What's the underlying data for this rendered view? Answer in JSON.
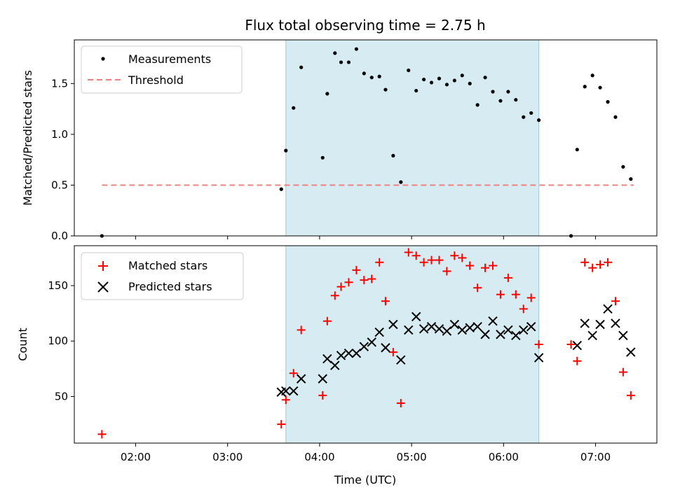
{
  "chart_data": {
    "title": "Flux total observing time = 2.75 h",
    "xlabel": "Time (UTC)",
    "x_ticks": [
      "02:00",
      "03:00",
      "04:00",
      "05:00",
      "06:00",
      "07:00"
    ],
    "x_range": [
      "01:20",
      "07:40"
    ],
    "shaded_interval": [
      "03:38",
      "06:23"
    ],
    "panels": [
      {
        "type": "scatter",
        "ylabel": "Matched/Predicted stars",
        "ylim": [
          0,
          1.93
        ],
        "y_ticks": [
          "0.0",
          "0.5",
          "1.0",
          "1.5"
        ],
        "legend": [
          "Measurements",
          "Threshold"
        ],
        "legend_position": "top-left",
        "threshold": {
          "name": "Threshold",
          "value": 0.5,
          "x": [
            "01:38",
            "07:25"
          ],
          "color": "#f08080"
        },
        "series": [
          {
            "name": "Measurements",
            "color": "#000000",
            "x": [
              "01:38",
              "03:35",
              "03:38",
              "03:43",
              "03:48",
              "04:02",
              "04:05",
              "04:10",
              "04:14",
              "04:19",
              "04:24",
              "04:29",
              "04:34",
              "04:39",
              "04:43",
              "04:48",
              "04:53",
              "04:58",
              "05:03",
              "05:08",
              "05:13",
              "05:18",
              "05:23",
              "05:28",
              "05:33",
              "05:38",
              "05:43",
              "05:48",
              "05:53",
              "05:58",
              "06:03",
              "06:08",
              "06:13",
              "06:18",
              "06:23",
              "06:44",
              "06:48",
              "06:53",
              "06:58",
              "07:03",
              "07:08",
              "07:13",
              "07:18",
              "07:23"
            ],
            "y": [
              0.0,
              0.46,
              0.84,
              1.26,
              1.66,
              0.77,
              1.4,
              1.8,
              1.71,
              1.71,
              1.84,
              1.6,
              1.56,
              1.57,
              1.44,
              0.79,
              0.53,
              1.63,
              1.43,
              1.54,
              1.51,
              1.55,
              1.49,
              1.53,
              1.58,
              1.5,
              1.29,
              1.56,
              1.42,
              1.33,
              1.42,
              1.34,
              1.17,
              1.21,
              1.14,
              0.0,
              0.85,
              1.47,
              1.58,
              1.46,
              1.32,
              1.17,
              0.68,
              0.56
            ]
          }
        ]
      },
      {
        "type": "scatter",
        "ylabel": "Count",
        "ylim": [
          8,
          186
        ],
        "y_ticks": [
          "50",
          "100",
          "150"
        ],
        "legend": [
          "Matched stars",
          "Predicted stars"
        ],
        "legend_position": "top-left",
        "series": [
          {
            "name": "Matched stars",
            "marker": "plus",
            "color": "#ff0000",
            "x": [
              "01:38",
              "03:35",
              "03:38",
              "03:43",
              "03:48",
              "04:02",
              "04:05",
              "04:10",
              "04:14",
              "04:19",
              "04:24",
              "04:29",
              "04:34",
              "04:39",
              "04:43",
              "04:48",
              "04:53",
              "04:58",
              "05:03",
              "05:08",
              "05:13",
              "05:18",
              "05:23",
              "05:28",
              "05:33",
              "05:38",
              "05:43",
              "05:48",
              "05:53",
              "05:58",
              "06:03",
              "06:08",
              "06:13",
              "06:18",
              "06:23",
              "06:44",
              "06:48",
              "06:53",
              "06:58",
              "07:03",
              "07:08",
              "07:13",
              "07:18",
              "07:23"
            ],
            "y": [
              16,
              25,
              47,
              71,
              110,
              51,
              118,
              141,
              149,
              153,
              164,
              155,
              156,
              171,
              136,
              90,
              44,
              180,
              177,
              171,
              173,
              173,
              163,
              177,
              175,
              168,
              148,
              166,
              168,
              142,
              157,
              142,
              129,
              139,
              97,
              97,
              82,
              171,
              166,
              169,
              171,
              136,
              72,
              51
            ]
          },
          {
            "name": "Predicted stars",
            "marker": "x",
            "color": "#000000",
            "x": [
              "03:35",
              "03:38",
              "03:43",
              "03:48",
              "04:02",
              "04:05",
              "04:10",
              "04:14",
              "04:19",
              "04:24",
              "04:29",
              "04:34",
              "04:39",
              "04:43",
              "04:48",
              "04:53",
              "04:58",
              "05:03",
              "05:08",
              "05:13",
              "05:18",
              "05:23",
              "05:28",
              "05:33",
              "05:38",
              "05:43",
              "05:48",
              "05:53",
              "05:58",
              "06:03",
              "06:08",
              "06:13",
              "06:18",
              "06:23",
              "06:48",
              "06:53",
              "06:58",
              "07:03",
              "07:08",
              "07:13",
              "07:18",
              "07:23"
            ],
            "y": [
              54,
              55,
              55,
              66,
              66,
              84,
              78,
              87,
              89,
              89,
              95,
              99,
              108,
              94,
              115,
              83,
              110,
              122,
              111,
              113,
              111,
              109,
              115,
              110,
              112,
              113,
              106,
              118,
              106,
              110,
              105,
              110,
              113,
              85,
              96,
              116,
              105,
              115,
              129,
              116,
              105,
              90
            ]
          }
        ]
      }
    ]
  }
}
